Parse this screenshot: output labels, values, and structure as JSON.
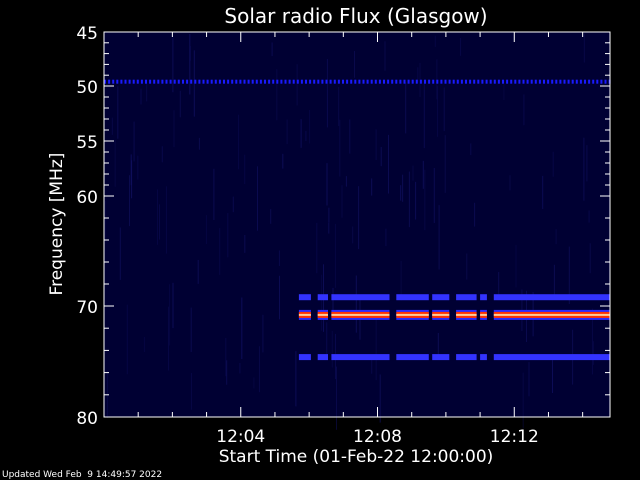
{
  "chart_data": {
    "type": "heatmap",
    "title": "Solar radio Flux (Glasgow)",
    "xlabel": "Start Time (01-Feb-22 12:00:00)",
    "ylabel": "Frequency [MHz]",
    "x_unit": "minutes after 12:00",
    "xlim": [
      0,
      14.8
    ],
    "ylim": [
      45,
      80
    ],
    "y_axis_inverted": true,
    "x_ticks": [
      {
        "value": 4,
        "label": "12:04"
      },
      {
        "value": 8,
        "label": "12:08"
      },
      {
        "value": 12,
        "label": "12:12"
      }
    ],
    "y_ticks": [
      {
        "value": 45,
        "label": "45"
      },
      {
        "value": 50,
        "label": "50"
      },
      {
        "value": 55,
        "label": "55"
      },
      {
        "value": 60,
        "label": "60"
      },
      {
        "value": 70,
        "label": "70"
      },
      {
        "value": 80,
        "label": "80"
      }
    ],
    "background_color": "#000033",
    "features": [
      {
        "name": "weak band",
        "freq_mhz": 49.6,
        "t_start": 0.0,
        "t_end": 14.8,
        "color": "#1a1aff",
        "intensity": "low"
      },
      {
        "name": "strong band",
        "freq_mhz": 70.8,
        "t_start": 5.7,
        "t_end": 14.8,
        "color": "#ff3300",
        "intensity": "high"
      },
      {
        "name": "upper sideband",
        "freq_mhz": 69.2,
        "t_start": 5.7,
        "t_end": 14.8,
        "color": "#3333ff",
        "intensity": "medium"
      },
      {
        "name": "lower sideband",
        "freq_mhz": 74.6,
        "t_start": 5.7,
        "t_end": 14.8,
        "color": "#3333ff",
        "intensity": "medium"
      }
    ],
    "gaps_minutes": [
      [
        6.0,
        6.2
      ],
      [
        6.5,
        6.6
      ],
      [
        8.3,
        8.5
      ],
      [
        9.5,
        9.6
      ],
      [
        10.1,
        10.3
      ],
      [
        10.9,
        11.0
      ],
      [
        11.2,
        11.4
      ]
    ]
  },
  "footer": {
    "updated": "Updated Wed Feb  9 14:49:57 2022"
  },
  "colors": {
    "axes": "#ffffff",
    "text": "#ffffff"
  }
}
